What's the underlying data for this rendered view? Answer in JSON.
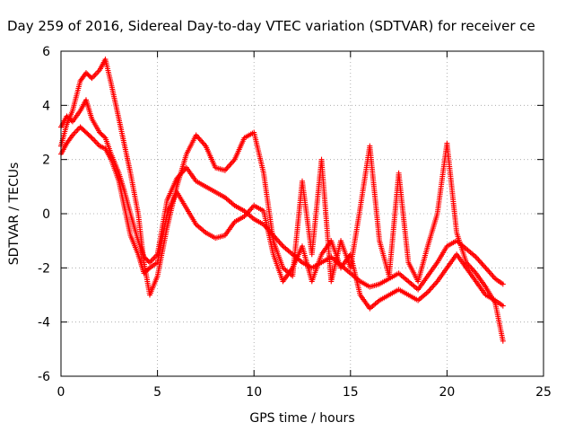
{
  "chart_data": {
    "type": "scatter",
    "title": "Day 259 of 2016, Sidereal Day-to-day VTEC variation (SDTVAR) for receiver ce",
    "xlabel": "GPS time / hours",
    "ylabel": "SDTVAR / TECUs",
    "xlim": [
      0,
      25
    ],
    "ylim": [
      -6,
      6
    ],
    "x_ticks": [
      0,
      5,
      10,
      15,
      20,
      25
    ],
    "y_ticks": [
      -6,
      -4,
      -2,
      0,
      2,
      4,
      6
    ],
    "x_tick_labels": [
      "0",
      "5",
      "10",
      "15",
      "20",
      "25"
    ],
    "y_tick_labels": [
      "-6",
      "-4",
      "-2",
      "0",
      "2",
      "4",
      "6"
    ],
    "grid": true,
    "marker": "plus",
    "color": "#ff0000",
    "series": [
      {
        "x": [
          0.0,
          0.3,
          0.6,
          1.0,
          1.3,
          1.6,
          2.0,
          2.3,
          2.6,
          3.0,
          3.3,
          3.6,
          4.0,
          4.3,
          4.6,
          5.0,
          5.5,
          6.0,
          6.5,
          7.0,
          7.5,
          8.0,
          8.5,
          9.0,
          9.5,
          10.0,
          10.5,
          11.0,
          11.5,
          12.0,
          12.5,
          13.0,
          13.5,
          14.0,
          14.5,
          15.0,
          15.5,
          16.0,
          16.5,
          17.0,
          17.5,
          18.0,
          18.5,
          19.0,
          19.5,
          20.0,
          20.5,
          21.0,
          21.5,
          22.0,
          22.5,
          22.9
        ],
        "y": [
          2.5,
          3.3,
          3.8,
          4.9,
          5.2,
          5.0,
          5.3,
          5.7,
          4.8,
          3.5,
          2.5,
          1.5,
          0.0,
          -1.8,
          -3.0,
          -2.3,
          -0.5,
          1.0,
          2.2,
          2.9,
          2.5,
          1.7,
          1.6,
          2.0,
          2.8,
          3.0,
          1.5,
          -1.0,
          -2.0,
          -2.3,
          1.2,
          -1.5,
          2.0,
          -2.5,
          -1.0,
          -2.0,
          0.2,
          2.5,
          -1.0,
          -2.3,
          1.5,
          -1.8,
          -2.5,
          -1.2,
          0.0,
          2.6,
          -0.7,
          -1.8,
          -2.2,
          -2.7,
          -3.3,
          -4.7
        ]
      },
      {
        "x": [
          0.0,
          0.3,
          0.6,
          1.0,
          1.3,
          1.6,
          2.0,
          2.3,
          2.6,
          3.0,
          3.3,
          3.6,
          4.0,
          4.3,
          4.6,
          5.0,
          5.5,
          6.0,
          6.5,
          7.0,
          7.5,
          8.0,
          8.5,
          9.0,
          9.5,
          10.0,
          10.5,
          11.0,
          11.5,
          12.0,
          12.5,
          13.0,
          13.5,
          14.0,
          14.5,
          15.0,
          15.5,
          16.0,
          16.5,
          17.0,
          17.5,
          18.0,
          18.5,
          19.0,
          19.5,
          20.0,
          20.5,
          21.0,
          21.5,
          22.0,
          22.5,
          22.9
        ],
        "y": [
          3.2,
          3.6,
          3.4,
          3.8,
          4.2,
          3.5,
          3.0,
          2.8,
          2.2,
          1.5,
          0.8,
          0.0,
          -1.0,
          -1.6,
          -1.8,
          -1.5,
          0.5,
          1.3,
          1.7,
          1.2,
          1.0,
          0.8,
          0.6,
          0.3,
          0.1,
          -0.2,
          -0.4,
          -0.8,
          -1.2,
          -1.5,
          -1.8,
          -2.0,
          -1.8,
          -1.6,
          -1.9,
          -2.2,
          -2.5,
          -2.7,
          -2.6,
          -2.4,
          -2.2,
          -2.5,
          -2.8,
          -2.3,
          -1.8,
          -1.2,
          -1.0,
          -1.3,
          -1.6,
          -2.0,
          -2.4,
          -2.6
        ]
      },
      {
        "x": [
          0.0,
          0.3,
          0.6,
          1.0,
          1.3,
          1.6,
          2.0,
          2.3,
          2.6,
          3.0,
          3.3,
          3.6,
          4.0,
          4.3,
          4.6,
          5.0,
          5.5,
          6.0,
          6.5,
          7.0,
          7.5,
          8.0,
          8.5,
          9.0,
          9.5,
          10.0,
          10.5,
          11.0,
          11.5,
          12.0,
          12.5,
          13.0,
          13.5,
          14.0,
          14.5,
          15.0,
          15.5,
          16.0,
          16.5,
          17.0,
          17.5,
          18.0,
          18.5,
          19.0,
          19.5,
          20.0,
          20.5,
          21.0,
          21.5,
          22.0,
          22.5,
          22.9
        ],
        "y": [
          2.2,
          2.6,
          2.9,
          3.2,
          3.0,
          2.8,
          2.5,
          2.4,
          2.0,
          1.2,
          0.2,
          -0.8,
          -1.5,
          -2.2,
          -2.0,
          -1.8,
          0.0,
          0.8,
          0.2,
          -0.4,
          -0.7,
          -0.9,
          -0.8,
          -0.3,
          -0.1,
          0.3,
          0.1,
          -1.5,
          -2.5,
          -2.0,
          -1.2,
          -2.5,
          -1.5,
          -1.0,
          -2.0,
          -1.5,
          -3.0,
          -3.5,
          -3.2,
          -3.0,
          -2.8,
          -3.0,
          -3.2,
          -2.9,
          -2.5,
          -2.0,
          -1.5,
          -2.0,
          -2.5,
          -3.0,
          -3.2,
          -3.4
        ]
      }
    ]
  }
}
